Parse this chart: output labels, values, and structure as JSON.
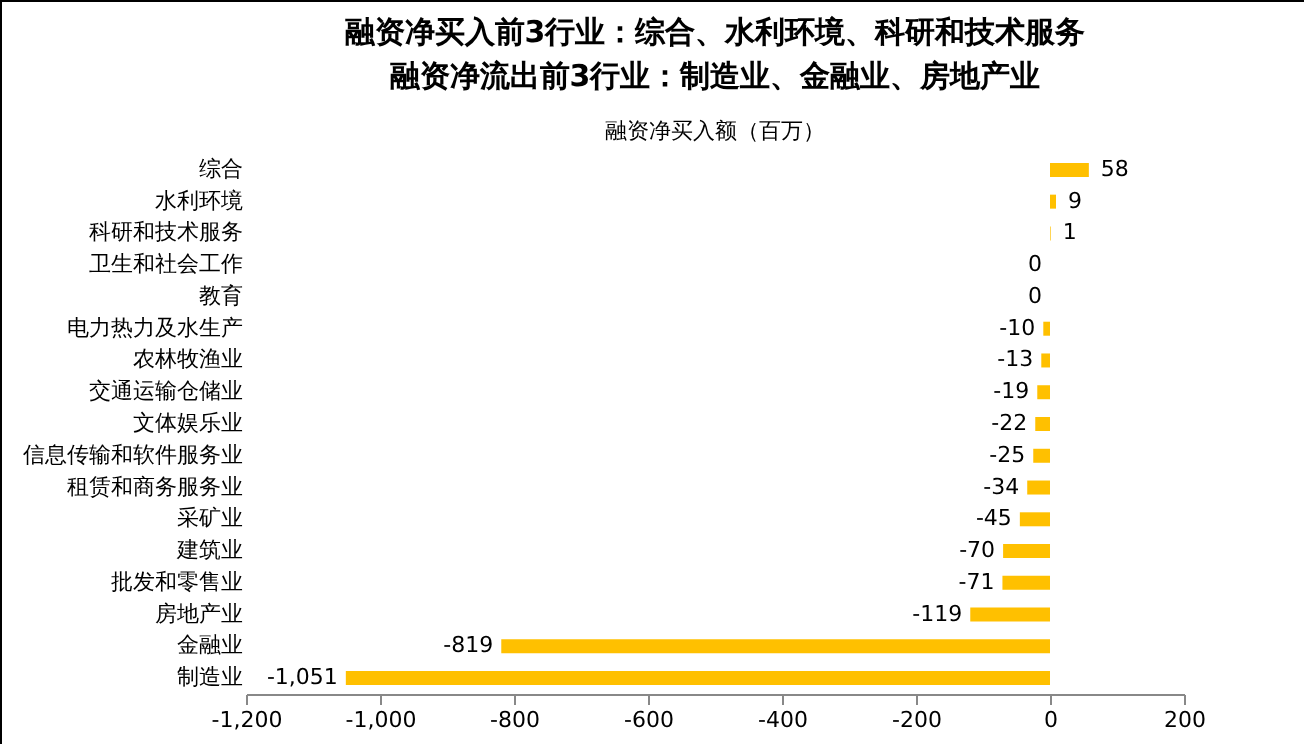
{
  "chart_data": {
    "type": "bar",
    "orientation": "horizontal",
    "title": "融资净买入前3行业：综合、水利环境、科研和技术服务",
    "subtitle": "融资净流出前3行业：制造业、金融业、房地产业",
    "annotations": [
      "融资净买入额（百万）"
    ],
    "categories": [
      "综合",
      "水利环境",
      "科研和技术服务",
      "卫生和社会工作",
      "教育",
      "电力热力及水生产",
      "农林牧渔业",
      "交通运输仓储业",
      "文体娱乐业",
      "信息传输和软件服务业",
      "租赁和商务服务业",
      "采矿业",
      "建筑业",
      "批发和零售业",
      "房地产业",
      "金融业",
      "制造业"
    ],
    "values": [
      58,
      9,
      1,
      0,
      0,
      -10,
      -13,
      -19,
      -22,
      -25,
      -34,
      -45,
      -70,
      -71,
      -119,
      -819,
      -1051
    ],
    "value_labels": [
      "58",
      "9",
      "1",
      "0",
      "0",
      "-10",
      "-13",
      "-19",
      "-22",
      "-25",
      "-34",
      "-45",
      "-70",
      "-71",
      "-119",
      "-819",
      "-1,051"
    ],
    "color": "#ffc000",
    "grid": false,
    "xlim": [
      -1200,
      200
    ],
    "xticks": [
      {
        "value": -1200,
        "label": "-1,200"
      },
      {
        "value": -1000,
        "label": "-1,000"
      },
      {
        "value": -800,
        "label": "-800"
      },
      {
        "value": -600,
        "label": "-600"
      },
      {
        "value": -400,
        "label": "-400"
      },
      {
        "value": -200,
        "label": "-200"
      },
      0,
      200
    ]
  }
}
